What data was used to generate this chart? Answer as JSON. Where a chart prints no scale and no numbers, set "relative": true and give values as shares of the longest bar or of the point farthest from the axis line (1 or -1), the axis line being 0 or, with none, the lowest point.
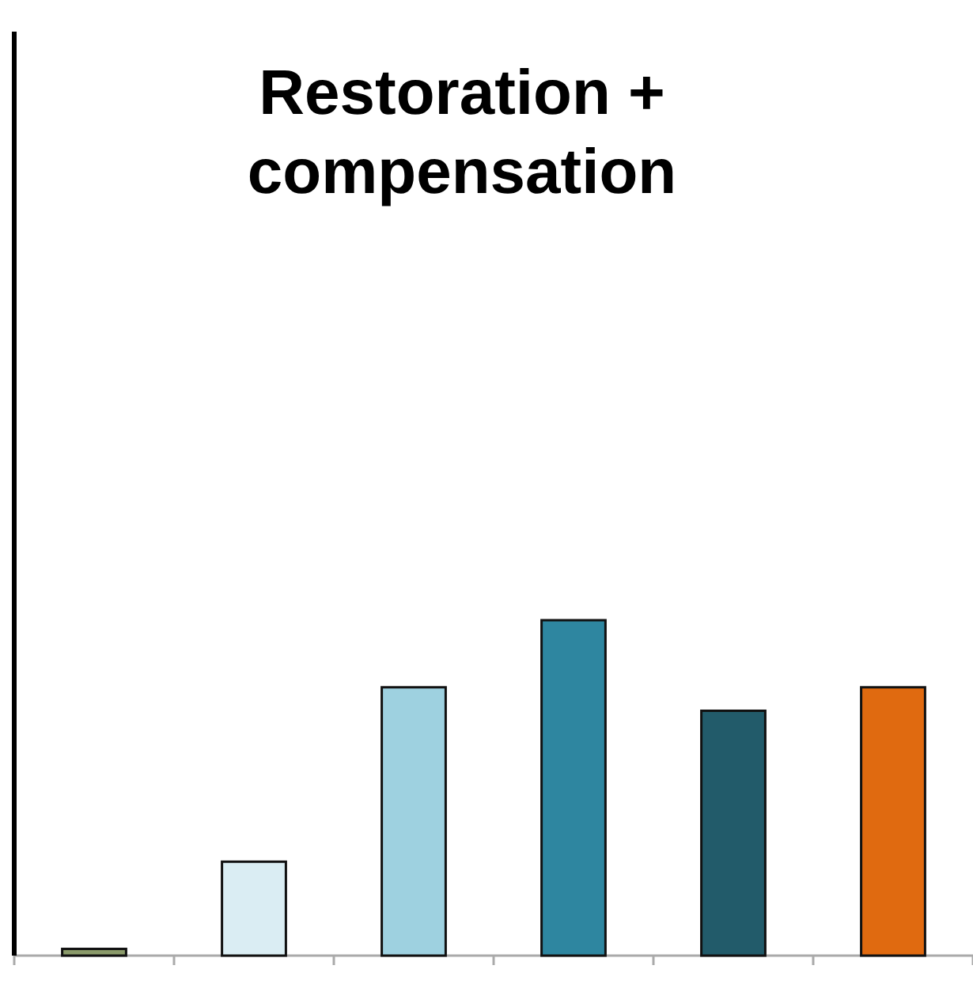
{
  "chart_data": {
    "type": "bar",
    "title": "Restoration + compensation",
    "relative": true,
    "categories": [
      null,
      null,
      null,
      null,
      null,
      null
    ],
    "values": [
      0.02,
      0.28,
      0.8,
      1,
      0.73,
      0.8
    ],
    "colors": [
      "#8a9a6a",
      "#daedf3",
      "#9ed1e0",
      "#2e86a0",
      "#225b6a",
      "#e06a10"
    ]
  }
}
